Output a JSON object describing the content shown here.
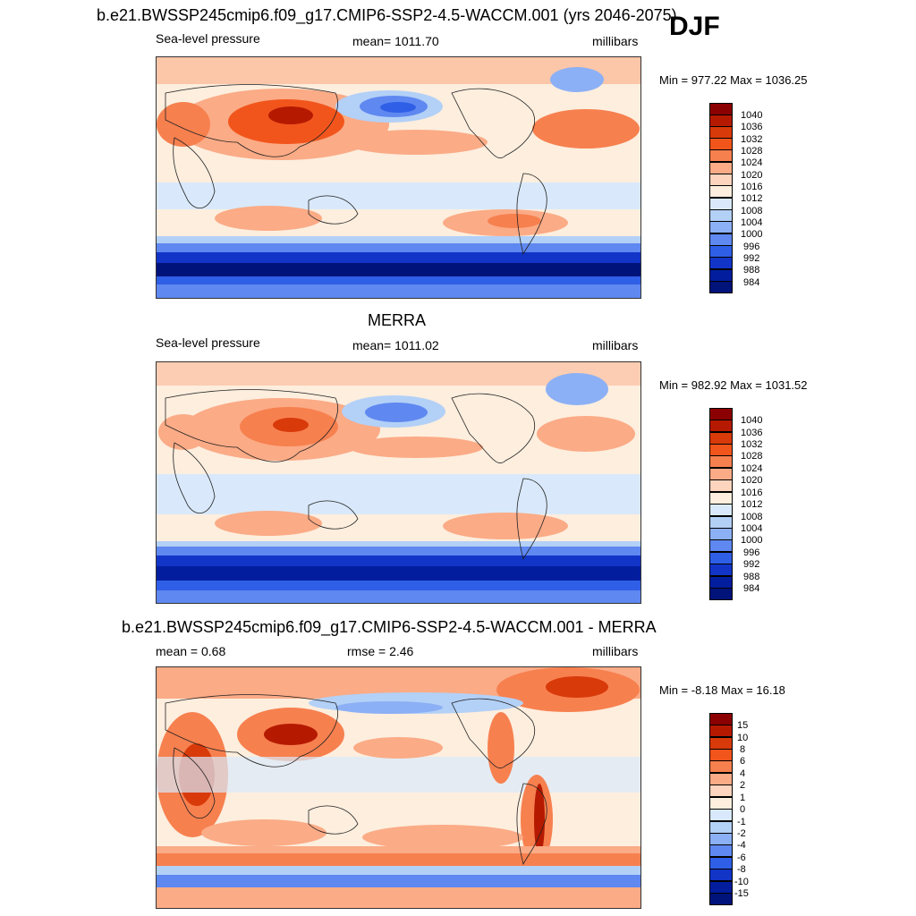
{
  "header": {
    "case_title": "b.e21.BWSSP245cmip6.f09_g17.CMIP6-SSP2-4.5-WACCM.001 (yrs 2046-2075)",
    "season": "DJF"
  },
  "panels": [
    {
      "id": "model",
      "left_label": "Sea-level pressure",
      "center_label": "mean= 1011.70",
      "right_label": "millibars",
      "minmax": "Min = 977.22 Max = 1036.25"
    },
    {
      "id": "obs",
      "title": "MERRA",
      "left_label": "Sea-level pressure",
      "center_label": "mean= 1011.02",
      "right_label": "millibars",
      "minmax": "Min = 982.92 Max = 1031.52"
    },
    {
      "id": "diff",
      "title": "b.e21.BWSSP245cmip6.f09_g17.CMIP6-SSP2-4.5-WACCM.001 - MERRA",
      "left_label": "mean =   0.68",
      "center_label": "rmse =   2.46",
      "right_label": "millibars",
      "minmax": "Min =  -8.18 Max =  16.18"
    }
  ],
  "colorbars": {
    "slp": {
      "labels": [
        "1040",
        "1036",
        "1032",
        "1028",
        "1024",
        "1020",
        "1016",
        "1012",
        "1008",
        "1004",
        "1000",
        "996",
        "992",
        "988",
        "984"
      ],
      "colors": [
        "#8b0000",
        "#b51a00",
        "#d93a0a",
        "#f2551c",
        "#f7804f",
        "#fbab86",
        "#fdd4bd",
        "#fdeede",
        "#d9e9fb",
        "#b3d0f7",
        "#8cb0f5",
        "#5f88f0",
        "#2f5fe6",
        "#1235c8",
        "#021e9e",
        "#00137a"
      ]
    },
    "diff": {
      "labels": [
        "15",
        "10",
        "8",
        "6",
        "4",
        "2",
        "1",
        "0",
        "-1",
        "-2",
        "-4",
        "-6",
        "-8",
        "-10",
        "-15"
      ],
      "colors": [
        "#8b0000",
        "#b51a00",
        "#d93a0a",
        "#f2551c",
        "#f7804f",
        "#fbab86",
        "#fdd4bd",
        "#fdeede",
        "#d9e9fb",
        "#b3d0f7",
        "#8cb0f5",
        "#5f88f0",
        "#2f5fe6",
        "#1235c8",
        "#021e9e",
        "#00137a"
      ]
    }
  }
}
